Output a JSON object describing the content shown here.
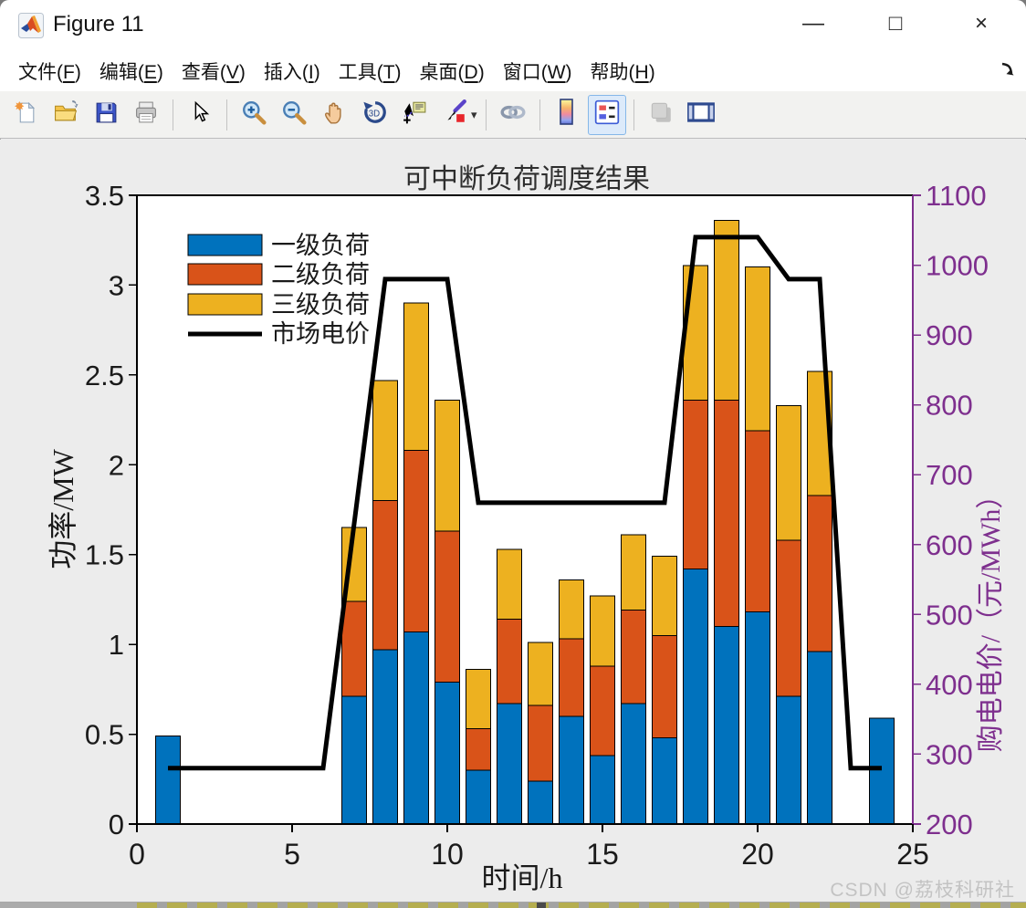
{
  "window": {
    "title": "Figure 11",
    "controls": {
      "minimize": "—",
      "maximize": "□",
      "close": "×"
    }
  },
  "menu": {
    "items": [
      {
        "text": "文件",
        "accel": "F"
      },
      {
        "text": "编辑",
        "accel": "E"
      },
      {
        "text": "查看",
        "accel": "V"
      },
      {
        "text": "插入",
        "accel": "I"
      },
      {
        "text": "工具",
        "accel": "T"
      },
      {
        "text": "桌面",
        "accel": "D"
      },
      {
        "text": "窗口",
        "accel": "W"
      },
      {
        "text": "帮助",
        "accel": "H"
      }
    ]
  },
  "toolbar": {
    "buttons": [
      {
        "name": "new-file"
      },
      {
        "name": "open-file"
      },
      {
        "name": "save-figure"
      },
      {
        "name": "print-figure"
      },
      {
        "name": "separator"
      },
      {
        "name": "pointer"
      },
      {
        "name": "separator"
      },
      {
        "name": "zoom-in"
      },
      {
        "name": "zoom-out"
      },
      {
        "name": "pan"
      },
      {
        "name": "rotate-3d"
      },
      {
        "name": "data-cursor"
      },
      {
        "name": "brush",
        "caret": true
      },
      {
        "name": "separator"
      },
      {
        "name": "link-plot"
      },
      {
        "name": "separator"
      },
      {
        "name": "insert-colorbar"
      },
      {
        "name": "insert-legend",
        "active": true
      },
      {
        "name": "separator"
      },
      {
        "name": "hide-plot-tools",
        "disabled": true
      },
      {
        "name": "show-plot-tools-dock"
      }
    ]
  },
  "watermark": "CSDN @荔枝科研社",
  "chart_data": {
    "type": "bar",
    "stacked": true,
    "title": "可中断负荷调度结果",
    "xlabel": "时间/h",
    "ylabel_left": "功率/MW",
    "ylabel_right": "购电电价/（元/MWh）",
    "xlim": [
      0,
      25
    ],
    "ylim_left": [
      0,
      3.5
    ],
    "ylim_right": [
      200,
      1100
    ],
    "xticks": [
      0,
      5,
      10,
      15,
      20,
      25
    ],
    "yticks_left": [
      0,
      0.5,
      1,
      1.5,
      2,
      2.5,
      3,
      3.5
    ],
    "yticks_right": [
      200,
      300,
      400,
      500,
      600,
      700,
      800,
      900,
      1000,
      1100
    ],
    "grid": false,
    "legend_position": "upper-left-inside",
    "colors": {
      "level1": "#0072BD",
      "level2": "#D95319",
      "level3": "#EDB120",
      "price_line": "#000000",
      "right_axis": "#7E2F8E"
    },
    "legend": [
      {
        "label": "一级负荷",
        "type": "patch",
        "color": "#0072BD"
      },
      {
        "label": "二级负荷",
        "type": "patch",
        "color": "#D95319"
      },
      {
        "label": "三级负荷",
        "type": "patch",
        "color": "#EDB120"
      },
      {
        "label": "市场电价",
        "type": "line",
        "color": "#000000"
      }
    ],
    "bars": {
      "hours": [
        1,
        7,
        8,
        9,
        10,
        11,
        12,
        13,
        14,
        15,
        16,
        17,
        18,
        19,
        20,
        21,
        22,
        24
      ],
      "series": [
        {
          "name": "一级负荷",
          "values": [
            0.49,
            0.71,
            0.97,
            1.07,
            0.79,
            0.3,
            0.67,
            0.24,
            0.6,
            0.38,
            0.67,
            0.48,
            1.42,
            1.1,
            1.18,
            0.71,
            0.96,
            0.59
          ]
        },
        {
          "name": "二级负荷",
          "values": [
            0,
            0.53,
            0.83,
            1.01,
            0.84,
            0.23,
            0.47,
            0.42,
            0.43,
            0.5,
            0.52,
            0.57,
            0.94,
            1.26,
            1.01,
            0.87,
            0.87,
            0
          ]
        },
        {
          "name": "三级负荷",
          "values": [
            0,
            0.41,
            0.67,
            0.82,
            0.73,
            0.33,
            0.39,
            0.35,
            0.33,
            0.39,
            0.42,
            0.44,
            0.75,
            1.0,
            0.91,
            0.75,
            0.69,
            0
          ]
        }
      ]
    },
    "price_line": {
      "name": "市场电价",
      "x": [
        1,
        6,
        8,
        10,
        11,
        17,
        18,
        20,
        21,
        22,
        23,
        24
      ],
      "y": [
        280,
        280,
        980,
        980,
        660,
        660,
        1040,
        1040,
        980,
        980,
        280,
        280
      ]
    }
  }
}
